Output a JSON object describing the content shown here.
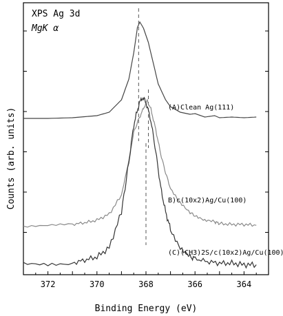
{
  "chart_data": {
    "type": "line",
    "title": "XPS Ag 3d",
    "subtitle": "MgK α",
    "xlabel": "Binding Energy (eV)",
    "ylabel": "Counts (arb. units)",
    "xlim": [
      373,
      363
    ],
    "x_reversed": true,
    "y_ticks_labeled": false,
    "x_ticks": [
      "372",
      "370",
      "368",
      "366",
      "364"
    ],
    "series": [
      {
        "name": "(A)Clean Ag(111)",
        "color": "#444444",
        "points": [
          [
            373,
            0.35
          ],
          [
            372,
            0.35
          ],
          [
            371,
            0.36
          ],
          [
            370,
            0.39
          ],
          [
            369.5,
            0.44
          ],
          [
            369,
            0.62
          ],
          [
            368.7,
            0.92
          ],
          [
            368.5,
            1.3
          ],
          [
            368.35,
            1.67
          ],
          [
            368.25,
            1.75
          ],
          [
            368.1,
            1.66
          ],
          [
            367.9,
            1.45
          ],
          [
            367.7,
            1.15
          ],
          [
            367.5,
            0.85
          ],
          [
            367.2,
            0.62
          ],
          [
            367,
            0.52
          ],
          [
            366.6,
            0.44
          ],
          [
            366.2,
            0.41
          ],
          [
            366,
            0.42
          ],
          [
            365.6,
            0.37
          ],
          [
            365.2,
            0.39
          ],
          [
            365,
            0.36
          ],
          [
            364.5,
            0.37
          ],
          [
            364,
            0.36
          ],
          [
            363.5,
            0.37
          ]
        ]
      },
      {
        "name": "B)c(10x2)Ag/Cu(100)",
        "color": "#888888",
        "points": [
          [
            373,
            0.06
          ],
          [
            372,
            0.07
          ],
          [
            371,
            0.08
          ],
          [
            370.5,
            0.1
          ],
          [
            370,
            0.13
          ],
          [
            369.5,
            0.2
          ],
          [
            369,
            0.42
          ],
          [
            368.7,
            0.82
          ],
          [
            368.5,
            1.15
          ],
          [
            368.3,
            1.3
          ],
          [
            368.1,
            1.43
          ],
          [
            367.95,
            1.52
          ],
          [
            367.8,
            1.42
          ],
          [
            367.6,
            1.18
          ],
          [
            367.4,
            0.9
          ],
          [
            367.2,
            0.68
          ],
          [
            367,
            0.5
          ],
          [
            366.6,
            0.34
          ],
          [
            366.2,
            0.22
          ],
          [
            366,
            0.18
          ],
          [
            365.6,
            0.12
          ],
          [
            365.2,
            0.11
          ],
          [
            365,
            0.09
          ],
          [
            364.5,
            0.08
          ],
          [
            364,
            0.08
          ],
          [
            363.5,
            0.07
          ]
        ]
      },
      {
        "name": "(C)(CH3)2S/c(10x2)Ag/Cu(100)",
        "color": "#333333",
        "points": [
          [
            373,
            0.02
          ],
          [
            372,
            0.02
          ],
          [
            371,
            0.03
          ],
          [
            370.5,
            0.05
          ],
          [
            370,
            0.07
          ],
          [
            369.5,
            0.13
          ],
          [
            369,
            0.36
          ],
          [
            368.7,
            0.68
          ],
          [
            368.5,
            0.92
          ],
          [
            368.3,
            1.05
          ],
          [
            368.15,
            1.1
          ],
          [
            368,
            1.07
          ],
          [
            367.8,
            0.95
          ],
          [
            367.6,
            0.75
          ],
          [
            367.4,
            0.52
          ],
          [
            367.2,
            0.36
          ],
          [
            367,
            0.25
          ],
          [
            366.6,
            0.13
          ],
          [
            366.2,
            0.07
          ],
          [
            366,
            0.06
          ],
          [
            365.5,
            0.04
          ],
          [
            365,
            0.03
          ],
          [
            364.5,
            0.03
          ],
          [
            364,
            0.02
          ],
          [
            363.5,
            0.02
          ]
        ]
      }
    ],
    "reference_lines": [
      {
        "x": 368.3
      },
      {
        "x": 367.9
      },
      {
        "x": 368.0
      }
    ]
  }
}
